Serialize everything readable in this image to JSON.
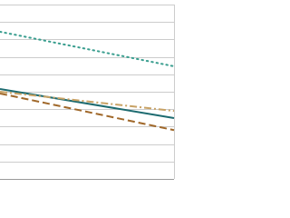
{
  "chart_data": {
    "type": "line",
    "x": [
      0,
      1
    ],
    "xlim": [
      0,
      1
    ],
    "ylim": [
      0,
      10
    ],
    "yticks": [
      0,
      1,
      2,
      3,
      4,
      5,
      6,
      7,
      8,
      9,
      10
    ],
    "grid": true,
    "series": [
      {
        "color": "#3a9e8f",
        "dash": "dotted",
        "values": [
          8.44,
          6.46
        ]
      },
      {
        "color": "#1d6b70",
        "dash": "solid",
        "values": [
          5.16,
          3.49
        ]
      },
      {
        "color": "#c8a265",
        "dash": "dashdot",
        "values": [
          5.0,
          3.9
        ]
      },
      {
        "color": "#a0682a",
        "dash": "dashed",
        "values": [
          4.9,
          2.8
        ]
      }
    ]
  }
}
